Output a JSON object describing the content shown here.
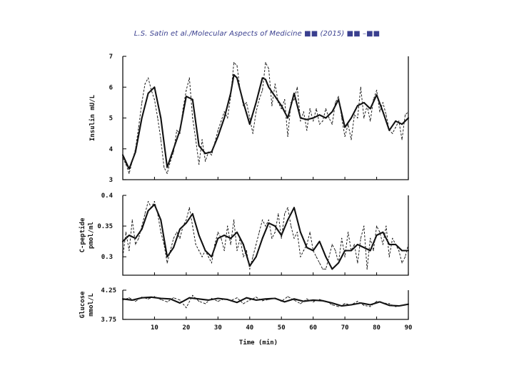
{
  "header": {
    "citation": "L.S. Satin et al./Molecular Aspects of Medicine ■■ (2015) ■■ –■■"
  },
  "chart_data": {
    "type": "line",
    "title": "",
    "xlabel": "Time (min)",
    "x_ticks": [
      10,
      20,
      30,
      40,
      50,
      60,
      70,
      80,
      90
    ],
    "xlim": [
      0,
      90
    ],
    "panels": [
      {
        "id": "insulin",
        "ylabel": "Insulin mU/L",
        "ylim": [
          3,
          7
        ],
        "y_ticks": [
          3,
          4,
          5,
          6,
          7
        ],
        "series": [
          {
            "name": "solid",
            "style": "solid",
            "x": [
              0,
              2,
              4,
              6,
              8,
              10,
              12,
              14,
              16,
              18,
              20,
              22,
              24,
              26,
              28,
              30,
              32,
              34,
              35,
              36,
              38,
              40,
              42,
              44,
              45,
              46,
              48,
              50,
              52,
              54,
              56,
              58,
              60,
              62,
              64,
              66,
              68,
              70,
              72,
              74,
              76,
              78,
              80,
              82,
              84,
              86,
              88,
              90
            ],
            "y": [
              3.8,
              3.35,
              3.9,
              5.0,
              5.8,
              6.0,
              5.0,
              3.4,
              4.0,
              4.6,
              5.7,
              5.6,
              4.1,
              3.85,
              3.9,
              4.4,
              5.0,
              5.8,
              6.4,
              6.3,
              5.5,
              4.8,
              5.5,
              6.3,
              6.25,
              6.0,
              5.7,
              5.4,
              5.0,
              5.8,
              5.0,
              4.95,
              5.0,
              5.1,
              5.0,
              5.2,
              5.6,
              4.7,
              5.0,
              5.4,
              5.5,
              5.3,
              5.75,
              5.2,
              4.6,
              4.9,
              4.8,
              5.0
            ]
          },
          {
            "name": "dashed",
            "style": "dashed",
            "x": [
              0,
              1,
              2,
              3,
              4,
              5,
              6,
              7,
              8,
              9,
              10,
              11,
              12,
              13,
              14,
              15,
              16,
              17,
              18,
              19,
              20,
              21,
              22,
              23,
              24,
              25,
              26,
              27,
              28,
              29,
              30,
              31,
              32,
              33,
              34,
              35,
              36,
              37,
              38,
              39,
              40,
              41,
              42,
              43,
              44,
              45,
              46,
              47,
              48,
              49,
              50,
              51,
              52,
              53,
              54,
              55,
              56,
              57,
              58,
              59,
              60,
              61,
              62,
              63,
              64,
              65,
              66,
              67,
              68,
              69,
              70,
              71,
              72,
              73,
              74,
              75,
              76,
              77,
              78,
              79,
              80,
              81,
              82,
              83,
              84,
              85,
              86,
              87,
              88,
              89,
              90
            ],
            "y": [
              3.7,
              3.5,
              3.2,
              3.6,
              4.0,
              4.7,
              5.5,
              6.1,
              6.3,
              5.9,
              5.6,
              5.0,
              4.3,
              3.4,
              3.2,
              3.6,
              3.9,
              4.6,
              4.5,
              5.3,
              5.9,
              6.3,
              5.0,
              4.3,
              3.5,
              4.3,
              3.6,
              3.9,
              3.8,
              4.2,
              4.6,
              4.9,
              5.2,
              5.0,
              5.7,
              6.8,
              6.7,
              5.9,
              5.4,
              5.5,
              5.0,
              4.5,
              5.2,
              5.6,
              5.9,
              6.8,
              6.6,
              5.4,
              6.1,
              5.5,
              5.3,
              5.6,
              4.4,
              5.5,
              5.6,
              6.0,
              4.9,
              5.2,
              4.6,
              5.3,
              4.9,
              5.3,
              4.8,
              4.9,
              5.3,
              5.0,
              4.8,
              5.5,
              5.7,
              5.0,
              4.4,
              4.8,
              4.3,
              5.1,
              5.0,
              6.0,
              5.0,
              5.4,
              4.9,
              5.6,
              5.9,
              5.2,
              5.5,
              5.1,
              4.6,
              4.5,
              4.7,
              4.9,
              4.3,
              5.1,
              5.2
            ]
          }
        ]
      },
      {
        "id": "cpeptide",
        "ylabel": "C-peptide pmol/ml",
        "ylim": [
          0.27,
          0.4
        ],
        "y_ticks": [
          0.3,
          0.35,
          0.4
        ],
        "y_tick_labels": [
          "0.3",
          "0.35",
          "0.4"
        ],
        "series": [
          {
            "name": "solid",
            "style": "solid",
            "x": [
              0,
              2,
              4,
              6,
              8,
              10,
              12,
              14,
              16,
              18,
              20,
              22,
              24,
              26,
              28,
              30,
              32,
              34,
              36,
              38,
              40,
              42,
              44,
              46,
              48,
              50,
              52,
              54,
              56,
              58,
              60,
              62,
              64,
              66,
              68,
              70,
              72,
              74,
              76,
              78,
              80,
              82,
              84,
              86,
              88,
              90
            ],
            "y": [
              0.325,
              0.335,
              0.33,
              0.345,
              0.375,
              0.385,
              0.36,
              0.3,
              0.315,
              0.345,
              0.355,
              0.37,
              0.335,
              0.31,
              0.3,
              0.33,
              0.335,
              0.33,
              0.34,
              0.32,
              0.285,
              0.3,
              0.33,
              0.355,
              0.35,
              0.335,
              0.36,
              0.38,
              0.34,
              0.315,
              0.31,
              0.325,
              0.3,
              0.28,
              0.29,
              0.31,
              0.31,
              0.32,
              0.315,
              0.31,
              0.335,
              0.34,
              0.32,
              0.32,
              0.31,
              0.31
            ]
          },
          {
            "name": "dashed",
            "style": "dashed",
            "x": [
              0,
              1,
              2,
              3,
              4,
              5,
              6,
              7,
              8,
              9,
              10,
              11,
              12,
              13,
              14,
              15,
              16,
              17,
              18,
              19,
              20,
              21,
              22,
              23,
              24,
              25,
              26,
              27,
              28,
              29,
              30,
              31,
              32,
              33,
              34,
              35,
              36,
              37,
              38,
              39,
              40,
              41,
              42,
              43,
              44,
              45,
              46,
              47,
              48,
              49,
              50,
              51,
              52,
              53,
              54,
              55,
              56,
              57,
              58,
              59,
              60,
              61,
              62,
              63,
              64,
              65,
              66,
              67,
              68,
              69,
              70,
              71,
              72,
              73,
              74,
              75,
              76,
              77,
              78,
              79,
              80,
              81,
              82,
              83,
              84,
              85,
              86,
              87,
              88,
              89,
              90
            ],
            "y": [
              0.3,
              0.34,
              0.31,
              0.36,
              0.32,
              0.33,
              0.35,
              0.37,
              0.39,
              0.38,
              0.39,
              0.37,
              0.34,
              0.32,
              0.29,
              0.31,
              0.33,
              0.34,
              0.33,
              0.35,
              0.36,
              0.38,
              0.35,
              0.32,
              0.31,
              0.3,
              0.31,
              0.3,
              0.29,
              0.32,
              0.34,
              0.33,
              0.31,
              0.35,
              0.32,
              0.36,
              0.31,
              0.33,
              0.3,
              0.31,
              0.28,
              0.3,
              0.32,
              0.34,
              0.36,
              0.35,
              0.36,
              0.33,
              0.34,
              0.37,
              0.33,
              0.37,
              0.38,
              0.35,
              0.33,
              0.34,
              0.3,
              0.31,
              0.32,
              0.34,
              0.31,
              0.3,
              0.29,
              0.28,
              0.28,
              0.3,
              0.32,
              0.31,
              0.29,
              0.33,
              0.3,
              0.34,
              0.31,
              0.32,
              0.29,
              0.33,
              0.35,
              0.28,
              0.33,
              0.31,
              0.35,
              0.34,
              0.32,
              0.35,
              0.3,
              0.33,
              0.32,
              0.31,
              0.29,
              0.3,
              0.32
            ]
          }
        ]
      },
      {
        "id": "glucose",
        "ylabel": "Glucose mmol/L",
        "ylim": [
          3.75,
          4.25
        ],
        "y_ticks": [
          3.75,
          4.25
        ],
        "y_tick_labels": [
          "3.75",
          "4.25"
        ],
        "series": [
          {
            "name": "solid",
            "style": "solid",
            "x": [
              0,
              3,
              6,
              9,
              12,
              15,
              18,
              21,
              24,
              27,
              30,
              33,
              36,
              39,
              42,
              45,
              48,
              51,
              54,
              57,
              60,
              63,
              66,
              69,
              72,
              75,
              78,
              81,
              84,
              87,
              90
            ],
            "y": [
              4.1,
              4.08,
              4.12,
              4.13,
              4.11,
              4.1,
              4.03,
              4.12,
              4.1,
              4.08,
              4.11,
              4.09,
              4.04,
              4.12,
              4.08,
              4.1,
              4.11,
              4.05,
              4.1,
              4.06,
              4.08,
              4.07,
              4.03,
              3.98,
              4.0,
              4.03,
              4.0,
              4.05,
              3.99,
              3.98,
              4.01
            ]
          },
          {
            "name": "dashed",
            "style": "dashed",
            "x": [
              0,
              2,
              4,
              6,
              8,
              10,
              12,
              14,
              16,
              18,
              20,
              22,
              24,
              26,
              28,
              30,
              32,
              34,
              36,
              38,
              40,
              42,
              44,
              46,
              48,
              50,
              52,
              54,
              56,
              58,
              60,
              62,
              64,
              66,
              68,
              70,
              72,
              74,
              76,
              78,
              80,
              82,
              84,
              86,
              88,
              90
            ],
            "y": [
              4.08,
              4.12,
              4.06,
              4.13,
              4.1,
              4.14,
              4.09,
              4.05,
              4.12,
              4.08,
              3.95,
              4.16,
              4.06,
              4.02,
              4.11,
              4.06,
              4.1,
              4.07,
              4.12,
              4.02,
              4.08,
              4.13,
              4.07,
              4.09,
              4.11,
              4.06,
              4.14,
              4.08,
              4.02,
              4.1,
              4.05,
              4.09,
              4.06,
              4.0,
              3.97,
              4.02,
              4.0,
              4.06,
              3.99,
              3.97,
              4.06,
              4.03,
              4.02,
              3.97,
              3.99,
              4.01
            ]
          }
        ]
      }
    ]
  }
}
